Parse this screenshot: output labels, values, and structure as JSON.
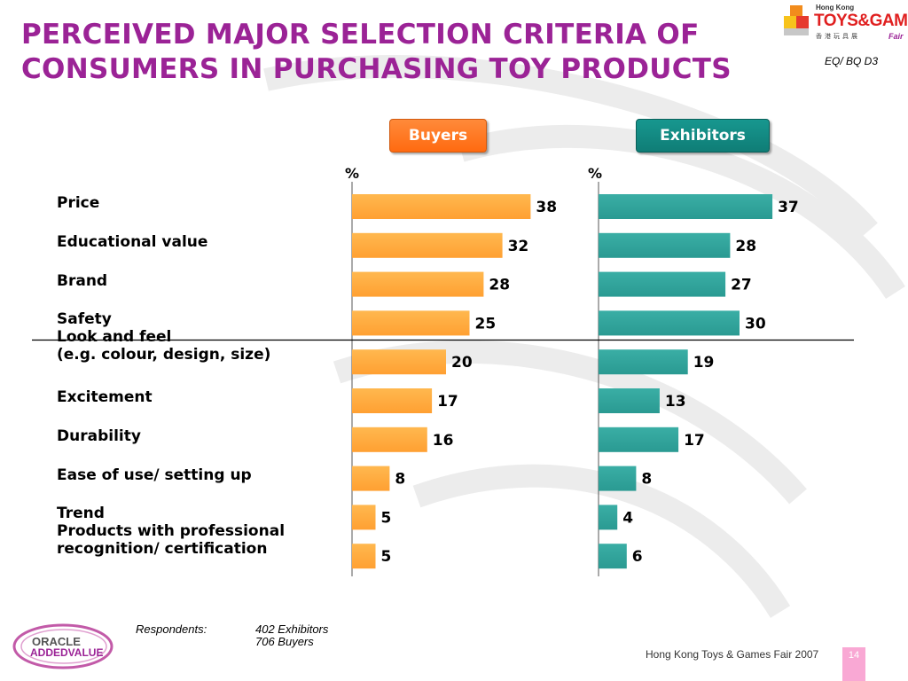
{
  "header": {
    "title": "PERCEIVED MAJOR SELECTION CRITERIA OF CONSUMERS IN PURCHASING TOY PRODUCTS",
    "ref_code": "EQ/ BQ D3",
    "title_color": "#9b2396"
  },
  "logo": {
    "hk": "Hong Kong",
    "brand": "TOYS&GAMES",
    "chinese": "香港玩具展",
    "fair": "Fair"
  },
  "groups": {
    "buyers": "Buyers",
    "exhibitors": "Exhibitors",
    "buyers_unit": "%",
    "exhibitors_unit": "%"
  },
  "colors": {
    "buyers_bar": "#ffa032",
    "exhibitors_bar": "#2a9a92"
  },
  "chart_data": {
    "type": "bar",
    "orientation": "horizontal",
    "categories": [
      "Price",
      "Educational value",
      "Brand",
      "Safety",
      "Look and feel\n(e.g. colour, design, size)",
      "Excitement",
      "Durability",
      "Ease of use/ setting up",
      "Trend",
      "Products with professional\nrecognition/ certification"
    ],
    "series": [
      {
        "name": "Buyers",
        "values": [
          38,
          32,
          28,
          25,
          20,
          17,
          16,
          8,
          5,
          5
        ]
      },
      {
        "name": "Exhibitors",
        "values": [
          37,
          28,
          27,
          30,
          19,
          13,
          17,
          8,
          4,
          6
        ]
      }
    ],
    "unit": "%"
  },
  "respondents": {
    "label": "Respondents:",
    "values": "402 Exhibitors\n706 Buyers"
  },
  "footer": {
    "text": "Hong Kong Toys & Games Fair 2007",
    "page": "14",
    "company_line1": "ORACLE",
    "company_line2": "ADDEDVALUE"
  }
}
